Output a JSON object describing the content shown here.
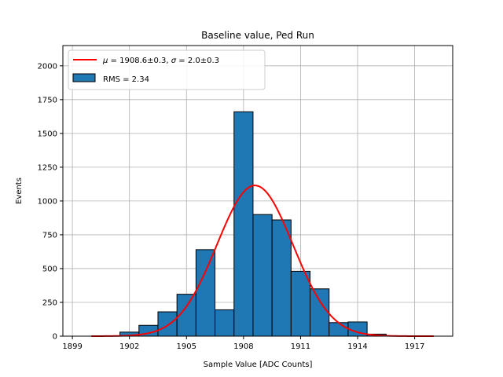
{
  "chart_data": {
    "type": "bar",
    "title": "Baseline value, Ped Run",
    "xlabel": "Sample Value [ADC Counts]",
    "ylabel": "Events",
    "xlim": [
      1898.5,
      1919.0
    ],
    "ylim": [
      0,
      2150
    ],
    "xticks": [
      1899,
      1902,
      1905,
      1908,
      1911,
      1914,
      1917
    ],
    "yticks": [
      0,
      250,
      500,
      750,
      1000,
      1250,
      1500,
      1750,
      2000
    ],
    "grid": true,
    "legend_position": "top-left",
    "histogram": {
      "name": "RMS = 2.34",
      "color": "#1f77b4",
      "bin_edges": [
        1901.5,
        1902.5,
        1903.5,
        1904.5,
        1905.5,
        1906.5,
        1907.5,
        1908.5,
        1909.5,
        1910.5,
        1911.5,
        1912.5,
        1913.5,
        1914.5,
        1915.5
      ],
      "counts": [
        30,
        80,
        180,
        310,
        640,
        195,
        1660,
        900,
        860,
        480,
        350,
        100,
        105,
        15
      ]
    },
    "fit": {
      "name_mu": "1908.6±0.3",
      "name_sigma": "2.0±0.3",
      "color": "#ff0000",
      "mu": 1908.6,
      "sigma": 2.0,
      "amplitude": 1115,
      "x_range": [
        1900,
        1918
      ]
    }
  }
}
